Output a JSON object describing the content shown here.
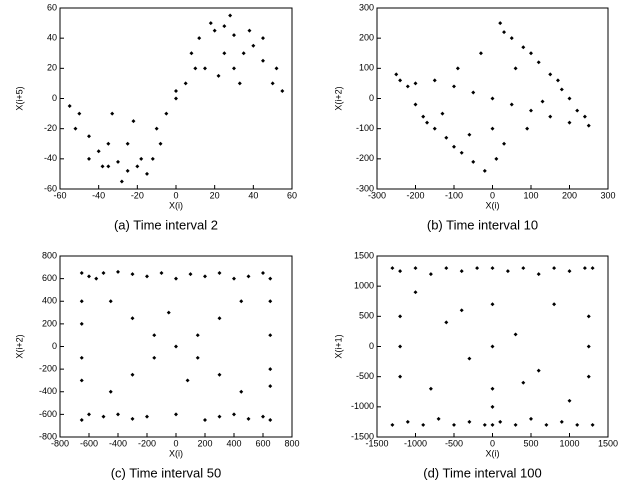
{
  "chart_data": [
    {
      "type": "scatter",
      "title": "(a) Time interval 2",
      "x_label": "X(i)",
      "y_label": "X(i+5)",
      "color": "#000000",
      "xlim": [
        -60,
        60
      ],
      "ylim": [
        -60,
        60
      ],
      "xticks": [
        -60,
        -40,
        -20,
        0,
        20,
        40,
        60
      ],
      "yticks": [
        -60,
        -40,
        -20,
        0,
        20,
        40,
        60
      ],
      "x": [
        20,
        25,
        30,
        35,
        22,
        15,
        40,
        45,
        50,
        55,
        28,
        18,
        10,
        5,
        0,
        -5,
        -10,
        -15,
        -20,
        -25,
        -30,
        -35,
        -40,
        -45,
        -50,
        -55,
        -28,
        -18,
        -22,
        -35,
        30,
        12,
        -12,
        38,
        -38,
        45,
        -45,
        25,
        -25,
        0,
        8,
        -8,
        52,
        -52,
        33,
        -33
      ],
      "y": [
        45,
        48,
        42,
        30,
        15,
        20,
        35,
        25,
        10,
        5,
        55,
        50,
        20,
        10,
        0,
        -10,
        -20,
        -50,
        -45,
        -48,
        -42,
        -30,
        -35,
        -25,
        -10,
        -5,
        -55,
        -40,
        -15,
        -45,
        20,
        40,
        -40,
        45,
        -45,
        40,
        -40,
        30,
        -30,
        5,
        30,
        -30,
        20,
        -20,
        10,
        -10
      ]
    },
    {
      "type": "scatter",
      "title": "(b) Time interval 10",
      "x_label": "X(i)",
      "y_label": "X(i+2)",
      "color": "#000000",
      "xlim": [
        -300,
        300
      ],
      "ylim": [
        -300,
        300
      ],
      "xticks": [
        -300,
        -200,
        -100,
        0,
        100,
        200,
        300
      ],
      "yticks": [
        -300,
        -200,
        -100,
        0,
        100,
        200,
        300
      ],
      "x": [
        -250,
        -220,
        -200,
        -180,
        -150,
        -120,
        -100,
        -80,
        -50,
        -20,
        0,
        20,
        30,
        50,
        80,
        100,
        120,
        150,
        180,
        200,
        220,
        250,
        -200,
        -150,
        -100,
        -50,
        0,
        50,
        100,
        150,
        200,
        -130,
        -60,
        10,
        60,
        130,
        -170,
        170,
        -30,
        30,
        90,
        -90,
        240,
        -240
      ],
      "y": [
        80,
        40,
        -20,
        -60,
        -100,
        -130,
        -160,
        -180,
        -210,
        -240,
        -100,
        250,
        220,
        200,
        170,
        150,
        120,
        80,
        30,
        0,
        -40,
        -90,
        50,
        60,
        40,
        20,
        0,
        -20,
        -40,
        -60,
        -80,
        -50,
        -120,
        -200,
        100,
        -10,
        -80,
        60,
        150,
        -150,
        -100,
        100,
        -60,
        60
      ]
    },
    {
      "type": "scatter",
      "title": "(c) Time interval 50",
      "x_label": "X(i)",
      "y_label": "X(i+2)",
      "color": "#000000",
      "xlim": [
        -800,
        800
      ],
      "ylim": [
        -800,
        800
      ],
      "xticks": [
        -800,
        -600,
        -400,
        -200,
        0,
        200,
        400,
        600,
        800
      ],
      "yticks": [
        -800,
        -600,
        -400,
        -200,
        0,
        200,
        400,
        600,
        800
      ],
      "x": [
        -650,
        -600,
        -550,
        -500,
        -400,
        -300,
        -200,
        -100,
        0,
        100,
        200,
        300,
        400,
        500,
        600,
        650,
        -650,
        -600,
        -500,
        -400,
        -300,
        -200,
        0,
        200,
        300,
        400,
        500,
        600,
        650,
        -650,
        -650,
        -650,
        -650,
        650,
        650,
        650,
        650,
        -450,
        -300,
        -150,
        150,
        300,
        450,
        -450,
        -300,
        -150,
        150,
        300,
        450,
        0,
        -50,
        80
      ],
      "y": [
        650,
        620,
        600,
        650,
        660,
        640,
        620,
        650,
        600,
        640,
        620,
        650,
        600,
        620,
        650,
        600,
        -650,
        -600,
        -620,
        -600,
        -640,
        -620,
        -600,
        -650,
        -620,
        -600,
        -640,
        -620,
        -650,
        400,
        200,
        -100,
        -300,
        400,
        100,
        -200,
        -350,
        400,
        250,
        100,
        -100,
        -250,
        -400,
        -400,
        -250,
        -100,
        100,
        250,
        400,
        0,
        300,
        -300
      ]
    },
    {
      "type": "scatter",
      "title": "(d) Time interval 100",
      "x_label": "X(i)",
      "y_label": "X(i+1)",
      "color": "#000000",
      "xlim": [
        -1500,
        1500
      ],
      "ylim": [
        -1500,
        1500
      ],
      "xticks": [
        -1500,
        -1000,
        -500,
        0,
        500,
        1000,
        1500
      ],
      "yticks": [
        -1500,
        -1000,
        -500,
        0,
        500,
        1000,
        1500
      ],
      "x": [
        -1300,
        -1200,
        -1000,
        -800,
        -600,
        -400,
        -200,
        0,
        200,
        400,
        600,
        800,
        1000,
        1200,
        1300,
        -1300,
        -1100,
        -900,
        -700,
        -500,
        -300,
        -100,
        0,
        100,
        300,
        500,
        700,
        900,
        1100,
        1300,
        -1200,
        -1200,
        -1200,
        1250,
        1250,
        1250,
        0,
        0,
        0,
        0,
        -600,
        -300,
        300,
        600,
        -800,
        800,
        -1000,
        1000,
        -400,
        400
      ],
      "y": [
        1300,
        1250,
        1300,
        1200,
        1300,
        1250,
        1300,
        1300,
        1250,
        1300,
        1200,
        1300,
        1250,
        1300,
        1300,
        -1300,
        -1250,
        -1300,
        -1200,
        -1300,
        -1250,
        -1300,
        -1300,
        -1250,
        -1300,
        -1200,
        -1300,
        -1250,
        -1300,
        -1300,
        500,
        0,
        -500,
        500,
        0,
        -500,
        700,
        0,
        -700,
        -1000,
        400,
        -200,
        200,
        -400,
        -700,
        700,
        900,
        -900,
        600,
        -600
      ]
    }
  ]
}
